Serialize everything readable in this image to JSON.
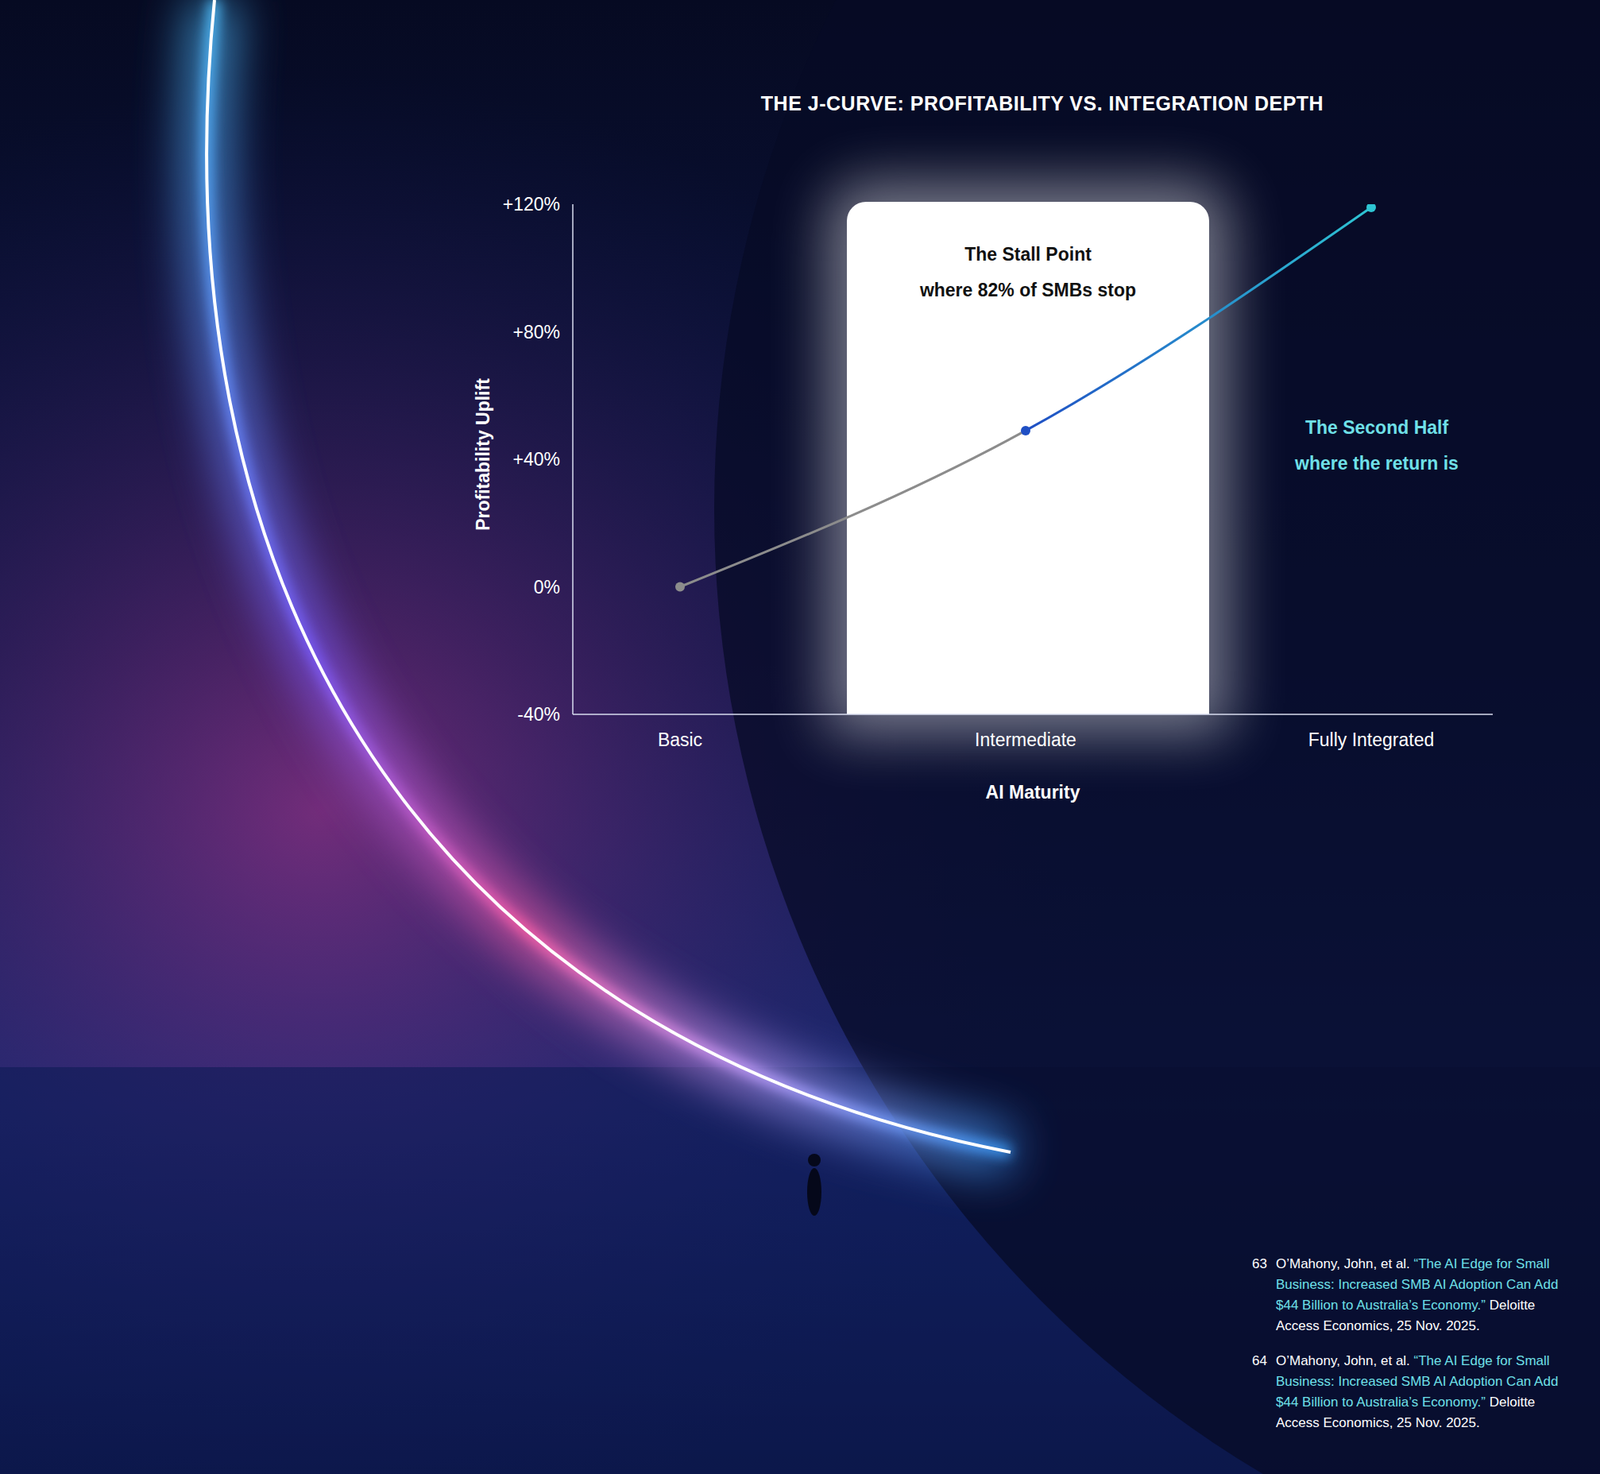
{
  "chart_data": {
    "type": "line",
    "title": "THE J-CURVE: PROFITABILITY VS. INTEGRATION DEPTH",
    "x_label": "AI Maturity",
    "y_label": "Profitability Uplift",
    "categories": [
      "Basic",
      "Intermediate",
      "Fully Integrated"
    ],
    "values": [
      0,
      49,
      119
    ],
    "colors": [
      "#8c8c8c",
      "#1f4fc4",
      "#2ec5d3"
    ],
    "marker": "circle",
    "line_style": "solid",
    "ylim": [
      -40,
      120
    ],
    "yticks": [
      {
        "value": -40,
        "label": "-40%"
      },
      {
        "value": 0,
        "label": "0%"
      },
      {
        "value": 40,
        "label": "+40%"
      },
      {
        "value": 80,
        "label": "+80%"
      },
      {
        "value": 120,
        "label": "+120%"
      }
    ],
    "grid": false,
    "annotations": [
      {
        "title": "The Stall Point",
        "text": "where 82% of SMBs stop"
      },
      {
        "title": "The Second Half",
        "text": "where the return is"
      }
    ]
  },
  "footnotes": [
    {
      "number": 63,
      "author": "O’Mahony, John, et al.",
      "title": "“The AI Edge for Small Business: Increased SMB AI Adoption Can Add $44 Billion to Australia’s Economy.”",
      "source": "Deloitte Access Economics, 25 Nov. 2025."
    },
    {
      "number": 64,
      "author": "O’Mahony, John, et al.",
      "title": "“The AI Edge for Small Business: Increased SMB AI Adoption Can Add $44 Billion to Australia’s Economy.”",
      "source": "Deloitte Access Economics, 25 Nov. 2025."
    }
  ]
}
